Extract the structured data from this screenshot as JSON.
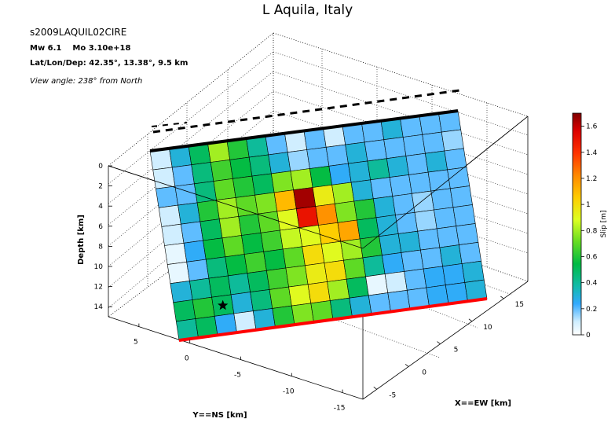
{
  "header": {
    "title": "L Aquila, Italy",
    "event_id": "s2009LAQUIL02CIRE",
    "magnitude": "Mw 6.1",
    "moment": "Mo 3.10e+18",
    "location": "Lat/Lon/Dep: 42.35°, 13.38°, 9.5 km",
    "view_angle": "View angle: 238° from North"
  },
  "chart_data": {
    "type": "heatmap",
    "title": "L Aquila, Italy",
    "xlabel": "X==EW [km]",
    "ylabel": "Y==NS [km]",
    "zlabel": "Depth [km]",
    "colorbar_label": "Slip [m]",
    "x_ticks": [
      "-5",
      "0",
      "5",
      "10",
      "15"
    ],
    "y_ticks": [
      "5",
      "0",
      "-5",
      "-10",
      "-15"
    ],
    "depth_ticks": [
      "0",
      "2",
      "4",
      "6",
      "8",
      "10",
      "12",
      "14"
    ],
    "colorbar_ticks": [
      "0",
      "0.2",
      "0.4",
      "0.6",
      "0.8",
      "1",
      "1.2",
      "1.4",
      "1.6"
    ],
    "slip_range": [
      0,
      1.7
    ],
    "hypocenter_cell": [
      8,
      2
    ],
    "slip_grid": [
      [
        0.1,
        0.3,
        0.5,
        0.8,
        0.6,
        0.4,
        0.2,
        0.1,
        0.2,
        0.1,
        0.2,
        0.2,
        0.3,
        0.2,
        0.2,
        0.2
      ],
      [
        0.1,
        0.2,
        0.45,
        0.65,
        0.55,
        0.45,
        0.3,
        0.15,
        0.2,
        0.2,
        0.3,
        0.2,
        0.2,
        0.2,
        0.2,
        0.15
      ],
      [
        0.2,
        0.2,
        0.45,
        0.7,
        0.6,
        0.5,
        0.75,
        0.8,
        0.55,
        0.25,
        0.3,
        0.4,
        0.3,
        0.2,
        0.3,
        0.2
      ],
      [
        0.1,
        0.3,
        0.6,
        0.8,
        0.7,
        0.75,
        1.1,
        1.65,
        0.95,
        0.8,
        0.3,
        0.2,
        0.2,
        0.2,
        0.2,
        0.2
      ],
      [
        0.1,
        0.2,
        0.5,
        0.8,
        0.6,
        0.7,
        0.9,
        1.5,
        1.2,
        0.75,
        0.6,
        0.3,
        0.2,
        0.15,
        0.2,
        0.2
      ],
      [
        0.05,
        0.25,
        0.55,
        0.7,
        0.55,
        0.65,
        0.85,
        0.9,
        1.05,
        1.15,
        0.5,
        0.3,
        0.2,
        0.15,
        0.2,
        0.2
      ],
      [
        0.05,
        0.2,
        0.45,
        0.55,
        0.65,
        0.55,
        0.7,
        1.0,
        0.9,
        0.8,
        0.6,
        0.3,
        0.3,
        0.2,
        0.2,
        0.2
      ],
      [
        0.3,
        0.4,
        0.5,
        0.4,
        0.5,
        0.65,
        0.75,
        0.95,
        1.0,
        0.7,
        0.4,
        0.25,
        0.2,
        0.2,
        0.3,
        0.2
      ],
      [
        0.5,
        0.6,
        0.5,
        0.3,
        0.45,
        0.7,
        0.9,
        1.0,
        0.8,
        0.5,
        0.05,
        0.1,
        0.2,
        0.25,
        0.25,
        0.3
      ],
      [
        0.4,
        0.5,
        0.25,
        0.1,
        0.3,
        0.6,
        0.75,
        0.7,
        0.45,
        0.3,
        0.2,
        0.2,
        0.2,
        0.25,
        0.25,
        0.3
      ]
    ]
  }
}
